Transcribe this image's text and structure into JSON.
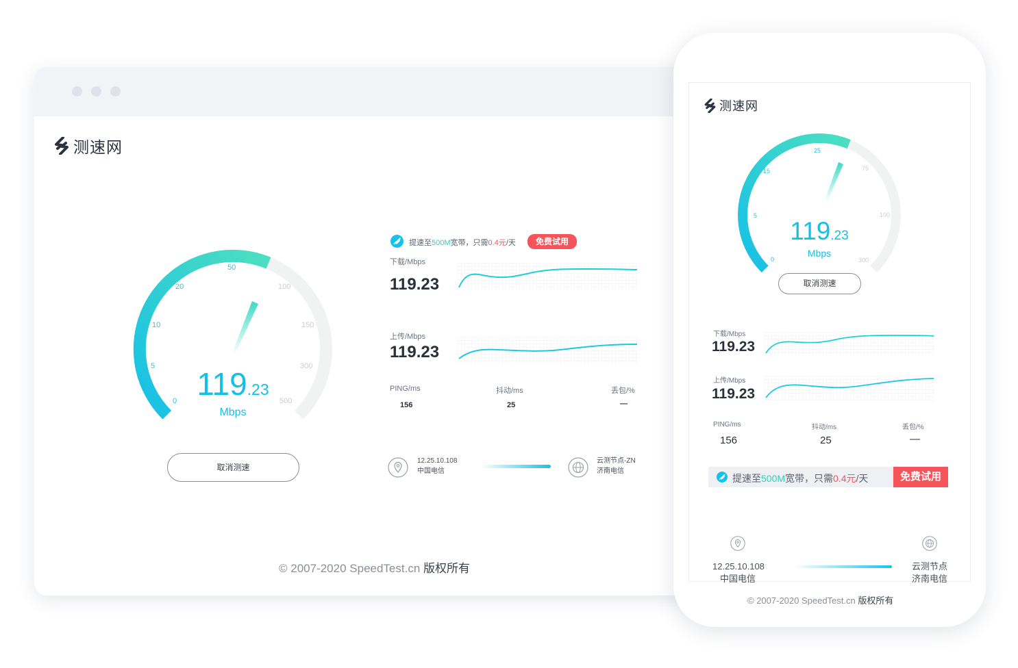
{
  "brand": {
    "name": "测速网"
  },
  "colors": {
    "accent": "#16bfe6",
    "teal": "#4ddfc0",
    "danger": "#f4545a",
    "text": "#2a2f3a"
  },
  "gauge": {
    "speed_int": "119",
    "speed_dec": ".23",
    "unit": "Mbps",
    "ticks_desktop": [
      "0",
      "5",
      "10",
      "20",
      "50",
      "100",
      "150",
      "300",
      "500"
    ],
    "ticks_mobile": [
      "0",
      "5",
      "15",
      "25",
      "75",
      "100",
      "300"
    ]
  },
  "cancel_label": "取消测速",
  "promo": {
    "prefix": "提速至",
    "speed": "500M",
    "mid": "宽带，只需",
    "price": "0.4元",
    "suffix": "/天",
    "button": "免费试用"
  },
  "download": {
    "label": "下载/Mbps",
    "value": "119.23"
  },
  "upload": {
    "label": "上传/Mbps",
    "value": "119.23"
  },
  "stats": {
    "ping_label": "PING/ms",
    "ping_value": "156",
    "jitter_label": "抖动/ms",
    "jitter_value": "25",
    "loss_label": "丢包/%",
    "loss_value": "—"
  },
  "client": {
    "ip": "12.25.10.108",
    "isp": "中国电信"
  },
  "server_desktop": {
    "name": "云测节点-ZN",
    "isp": "济南电信"
  },
  "server_mobile": {
    "name": "云测节点",
    "isp": "济南电信"
  },
  "footer": {
    "copyright": "© 2007-2020 SpeedTest.cn",
    "rights": "版权所有"
  },
  "icons": [
    "brand-logo-icon",
    "rocket-icon",
    "location-pin-icon",
    "globe-icon"
  ]
}
